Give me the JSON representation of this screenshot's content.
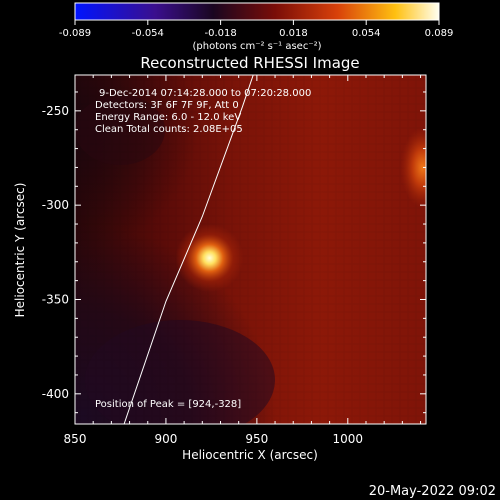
{
  "chart_data": {
    "type": "heatmap",
    "title": "Reconstructed RHESSI Image",
    "xlabel": "Heliocentric X (arcsec)",
    "ylabel": "Heliocentric Y (arcsec)",
    "xlim": [
      850,
      1043
    ],
    "ylim": [
      -416,
      -231
    ],
    "x_ticks": [
      850,
      900,
      950,
      1000
    ],
    "y_ticks": [
      -250,
      -300,
      -350,
      -400
    ],
    "colorbar": {
      "min": -0.089,
      "max": 0.089,
      "ticks": [
        "-0.089",
        "-0.054",
        "-0.018",
        "0.018",
        "0.054",
        "0.089"
      ],
      "unit_label": "(photons cm⁻² s⁻¹ asec⁻²)",
      "colormap": "blue-purple-red-yellow-white (RHESSI)"
    },
    "annotations": [
      "9-Dec-2014 07:14:28.000 to 07:20:28.000",
      "Detectors: 3F 6F 7F 9F, Att 0",
      "Energy Range: 6.0 - 12.0 keV",
      "Clean    Total counts: 2.08E+05"
    ],
    "peak_text": "Position of Peak = [924,-328]",
    "peak": {
      "x": 924,
      "y": -328
    },
    "sources": [
      {
        "x": 924,
        "y": -328,
        "value": 0.089
      },
      {
        "x": 1040,
        "y": -280,
        "value": 0.06
      }
    ],
    "limb_curve": [
      [
        877,
        -416
      ],
      [
        900,
        -351
      ],
      [
        920,
        -306
      ],
      [
        942,
        -248
      ],
      [
        948,
        -231
      ]
    ],
    "grid": false
  },
  "footer": {
    "date_stamp": "20-May-2022 09:02"
  }
}
